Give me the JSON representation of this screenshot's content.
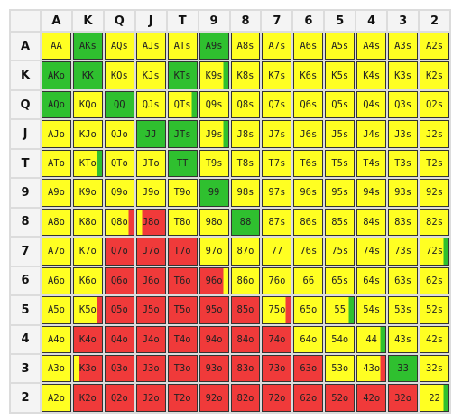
{
  "colors": {
    "raise": "#2fc02f",
    "call": "#ffff22",
    "fold": "#f03a3a"
  },
  "ranks": [
    "A",
    "K",
    "Q",
    "J",
    "T",
    "9",
    "8",
    "7",
    "6",
    "5",
    "4",
    "3",
    "2"
  ],
  "cells": [
    [
      {
        "label": "AA",
        "fill": "call",
        "accent": null
      },
      {
        "label": "AKs",
        "fill": "raise",
        "accent": null
      },
      {
        "label": "AQs",
        "fill": "call",
        "accent": null
      },
      {
        "label": "AJs",
        "fill": "call",
        "accent": null
      },
      {
        "label": "ATs",
        "fill": "call",
        "accent": null
      },
      {
        "label": "A9s",
        "fill": "raise",
        "accent": null
      },
      {
        "label": "A8s",
        "fill": "call",
        "accent": null
      },
      {
        "label": "A7s",
        "fill": "call",
        "accent": null
      },
      {
        "label": "A6s",
        "fill": "call",
        "accent": null
      },
      {
        "label": "A5s",
        "fill": "call",
        "accent": null
      },
      {
        "label": "A4s",
        "fill": "call",
        "accent": null
      },
      {
        "label": "A3s",
        "fill": "call",
        "accent": null
      },
      {
        "label": "A2s",
        "fill": "call",
        "accent": null
      }
    ],
    [
      {
        "label": "AKo",
        "fill": "raise",
        "accent": null
      },
      {
        "label": "KK",
        "fill": "raise",
        "accent": null
      },
      {
        "label": "KQs",
        "fill": "call",
        "accent": null
      },
      {
        "label": "KJs",
        "fill": "call",
        "accent": null
      },
      {
        "label": "KTs",
        "fill": "raise",
        "accent": null
      },
      {
        "label": "K9s",
        "fill": "call",
        "accent": "raise"
      },
      {
        "label": "K8s",
        "fill": "call",
        "accent": null
      },
      {
        "label": "K7s",
        "fill": "call",
        "accent": null
      },
      {
        "label": "K6s",
        "fill": "call",
        "accent": null
      },
      {
        "label": "K5s",
        "fill": "call",
        "accent": null
      },
      {
        "label": "K4s",
        "fill": "call",
        "accent": null
      },
      {
        "label": "K3s",
        "fill": "call",
        "accent": null
      },
      {
        "label": "K2s",
        "fill": "call",
        "accent": null
      }
    ],
    [
      {
        "label": "AQo",
        "fill": "raise",
        "accent": null
      },
      {
        "label": "KQo",
        "fill": "call",
        "accent": null
      },
      {
        "label": "QQ",
        "fill": "raise",
        "accent": null
      },
      {
        "label": "QJs",
        "fill": "call",
        "accent": null
      },
      {
        "label": "QTs",
        "fill": "call",
        "accent": "raise"
      },
      {
        "label": "Q9s",
        "fill": "call",
        "accent": null
      },
      {
        "label": "Q8s",
        "fill": "call",
        "accent": null
      },
      {
        "label": "Q7s",
        "fill": "call",
        "accent": null
      },
      {
        "label": "Q6s",
        "fill": "call",
        "accent": null
      },
      {
        "label": "Q5s",
        "fill": "call",
        "accent": null
      },
      {
        "label": "Q4s",
        "fill": "call",
        "accent": null
      },
      {
        "label": "Q3s",
        "fill": "call",
        "accent": null
      },
      {
        "label": "Q2s",
        "fill": "call",
        "accent": null
      }
    ],
    [
      {
        "label": "AJo",
        "fill": "call",
        "accent": null
      },
      {
        "label": "KJo",
        "fill": "call",
        "accent": null
      },
      {
        "label": "QJo",
        "fill": "call",
        "accent": null
      },
      {
        "label": "JJ",
        "fill": "raise",
        "accent": null
      },
      {
        "label": "JTs",
        "fill": "raise",
        "accent": null
      },
      {
        "label": "J9s",
        "fill": "call",
        "accent": "raise"
      },
      {
        "label": "J8s",
        "fill": "call",
        "accent": null
      },
      {
        "label": "J7s",
        "fill": "call",
        "accent": null
      },
      {
        "label": "J6s",
        "fill": "call",
        "accent": null
      },
      {
        "label": "J5s",
        "fill": "call",
        "accent": null
      },
      {
        "label": "J4s",
        "fill": "call",
        "accent": null
      },
      {
        "label": "J3s",
        "fill": "call",
        "accent": null
      },
      {
        "label": "J2s",
        "fill": "call",
        "accent": null
      }
    ],
    [
      {
        "label": "ATo",
        "fill": "call",
        "accent": null
      },
      {
        "label": "KTo",
        "fill": "call",
        "accent": "raise"
      },
      {
        "label": "QTo",
        "fill": "call",
        "accent": null
      },
      {
        "label": "JTo",
        "fill": "call",
        "accent": null
      },
      {
        "label": "TT",
        "fill": "raise",
        "accent": null
      },
      {
        "label": "T9s",
        "fill": "call",
        "accent": null
      },
      {
        "label": "T8s",
        "fill": "call",
        "accent": null
      },
      {
        "label": "T7s",
        "fill": "call",
        "accent": null
      },
      {
        "label": "T6s",
        "fill": "call",
        "accent": null
      },
      {
        "label": "T5s",
        "fill": "call",
        "accent": null
      },
      {
        "label": "T4s",
        "fill": "call",
        "accent": null
      },
      {
        "label": "T3s",
        "fill": "call",
        "accent": null
      },
      {
        "label": "T2s",
        "fill": "call",
        "accent": null
      }
    ],
    [
      {
        "label": "A9o",
        "fill": "call",
        "accent": null
      },
      {
        "label": "K9o",
        "fill": "call",
        "accent": null
      },
      {
        "label": "Q9o",
        "fill": "call",
        "accent": null
      },
      {
        "label": "J9o",
        "fill": "call",
        "accent": null
      },
      {
        "label": "T9o",
        "fill": "call",
        "accent": null
      },
      {
        "label": "99",
        "fill": "raise",
        "accent": null
      },
      {
        "label": "98s",
        "fill": "call",
        "accent": null
      },
      {
        "label": "97s",
        "fill": "call",
        "accent": null
      },
      {
        "label": "96s",
        "fill": "call",
        "accent": null
      },
      {
        "label": "95s",
        "fill": "call",
        "accent": null
      },
      {
        "label": "94s",
        "fill": "call",
        "accent": null
      },
      {
        "label": "93s",
        "fill": "call",
        "accent": null
      },
      {
        "label": "92s",
        "fill": "call",
        "accent": null
      }
    ],
    [
      {
        "label": "A8o",
        "fill": "call",
        "accent": null
      },
      {
        "label": "K8o",
        "fill": "call",
        "accent": null
      },
      {
        "label": "Q8o",
        "fill": "call",
        "accent": "fold"
      },
      {
        "label": "J8o",
        "fill": "fold",
        "accent": "call-left"
      },
      {
        "label": "T8o",
        "fill": "call",
        "accent": null
      },
      {
        "label": "98o",
        "fill": "call",
        "accent": null
      },
      {
        "label": "88",
        "fill": "raise",
        "accent": null
      },
      {
        "label": "87s",
        "fill": "call",
        "accent": null
      },
      {
        "label": "86s",
        "fill": "call",
        "accent": null
      },
      {
        "label": "85s",
        "fill": "call",
        "accent": null
      },
      {
        "label": "84s",
        "fill": "call",
        "accent": null
      },
      {
        "label": "83s",
        "fill": "call",
        "accent": null
      },
      {
        "label": "82s",
        "fill": "call",
        "accent": null
      }
    ],
    [
      {
        "label": "A7o",
        "fill": "call",
        "accent": null
      },
      {
        "label": "K7o",
        "fill": "call",
        "accent": null
      },
      {
        "label": "Q7o",
        "fill": "fold",
        "accent": null
      },
      {
        "label": "J7o",
        "fill": "fold",
        "accent": null
      },
      {
        "label": "T7o",
        "fill": "fold",
        "accent": null
      },
      {
        "label": "97o",
        "fill": "call",
        "accent": null
      },
      {
        "label": "87o",
        "fill": "call",
        "accent": null
      },
      {
        "label": "77",
        "fill": "call",
        "accent": null
      },
      {
        "label": "76s",
        "fill": "call",
        "accent": null
      },
      {
        "label": "75s",
        "fill": "call",
        "accent": null
      },
      {
        "label": "74s",
        "fill": "call",
        "accent": null
      },
      {
        "label": "73s",
        "fill": "call",
        "accent": null
      },
      {
        "label": "72s",
        "fill": "call",
        "accent": "raise"
      }
    ],
    [
      {
        "label": "A6o",
        "fill": "call",
        "accent": null
      },
      {
        "label": "K6o",
        "fill": "call",
        "accent": null
      },
      {
        "label": "Q6o",
        "fill": "fold",
        "accent": null
      },
      {
        "label": "J6o",
        "fill": "fold",
        "accent": null
      },
      {
        "label": "T6o",
        "fill": "fold",
        "accent": null
      },
      {
        "label": "96o",
        "fill": "fold",
        "accent": "call-right"
      },
      {
        "label": "86o",
        "fill": "call",
        "accent": null
      },
      {
        "label": "76o",
        "fill": "call",
        "accent": null
      },
      {
        "label": "66",
        "fill": "call",
        "accent": null
      },
      {
        "label": "65s",
        "fill": "call",
        "accent": null
      },
      {
        "label": "64s",
        "fill": "call",
        "accent": null
      },
      {
        "label": "63s",
        "fill": "call",
        "accent": null
      },
      {
        "label": "62s",
        "fill": "call",
        "accent": null
      }
    ],
    [
      {
        "label": "A5o",
        "fill": "call",
        "accent": null
      },
      {
        "label": "K5o",
        "fill": "call",
        "accent": "fold"
      },
      {
        "label": "Q5o",
        "fill": "fold",
        "accent": null
      },
      {
        "label": "J5o",
        "fill": "fold",
        "accent": null
      },
      {
        "label": "T5o",
        "fill": "fold",
        "accent": null
      },
      {
        "label": "95o",
        "fill": "fold",
        "accent": null
      },
      {
        "label": "85o",
        "fill": "fold",
        "accent": null
      },
      {
        "label": "75o",
        "fill": "call",
        "accent": "fold"
      },
      {
        "label": "65o",
        "fill": "call",
        "accent": null
      },
      {
        "label": "55",
        "fill": "call",
        "accent": "raise"
      },
      {
        "label": "54s",
        "fill": "call",
        "accent": null
      },
      {
        "label": "53s",
        "fill": "call",
        "accent": null
      },
      {
        "label": "52s",
        "fill": "call",
        "accent": null
      }
    ],
    [
      {
        "label": "A4o",
        "fill": "call",
        "accent": null
      },
      {
        "label": "K4o",
        "fill": "fold",
        "accent": null
      },
      {
        "label": "Q4o",
        "fill": "fold",
        "accent": null
      },
      {
        "label": "J4o",
        "fill": "fold",
        "accent": null
      },
      {
        "label": "T4o",
        "fill": "fold",
        "accent": null
      },
      {
        "label": "94o",
        "fill": "fold",
        "accent": null
      },
      {
        "label": "84o",
        "fill": "fold",
        "accent": null
      },
      {
        "label": "74o",
        "fill": "fold",
        "accent": null
      },
      {
        "label": "64o",
        "fill": "call",
        "accent": null
      },
      {
        "label": "54o",
        "fill": "call",
        "accent": null
      },
      {
        "label": "44",
        "fill": "call",
        "accent": "raise"
      },
      {
        "label": "43s",
        "fill": "call",
        "accent": null
      },
      {
        "label": "42s",
        "fill": "call",
        "accent": null
      }
    ],
    [
      {
        "label": "A3o",
        "fill": "call",
        "accent": null
      },
      {
        "label": "K3o",
        "fill": "fold",
        "accent": "call-left"
      },
      {
        "label": "Q3o",
        "fill": "fold",
        "accent": null
      },
      {
        "label": "J3o",
        "fill": "fold",
        "accent": null
      },
      {
        "label": "T3o",
        "fill": "fold",
        "accent": null
      },
      {
        "label": "93o",
        "fill": "fold",
        "accent": null
      },
      {
        "label": "83o",
        "fill": "fold",
        "accent": null
      },
      {
        "label": "73o",
        "fill": "fold",
        "accent": null
      },
      {
        "label": "63o",
        "fill": "fold",
        "accent": null
      },
      {
        "label": "53o",
        "fill": "call",
        "accent": null
      },
      {
        "label": "43o",
        "fill": "call",
        "accent": "fold"
      },
      {
        "label": "33",
        "fill": "raise",
        "accent": null
      },
      {
        "label": "32s",
        "fill": "call",
        "accent": null
      }
    ],
    [
      {
        "label": "A2o",
        "fill": "call",
        "accent": null
      },
      {
        "label": "K2o",
        "fill": "fold",
        "accent": null
      },
      {
        "label": "Q2o",
        "fill": "fold",
        "accent": null
      },
      {
        "label": "J2o",
        "fill": "fold",
        "accent": null
      },
      {
        "label": "T2o",
        "fill": "fold",
        "accent": null
      },
      {
        "label": "92o",
        "fill": "fold",
        "accent": null
      },
      {
        "label": "82o",
        "fill": "fold",
        "accent": null
      },
      {
        "label": "72o",
        "fill": "fold",
        "accent": null
      },
      {
        "label": "62o",
        "fill": "fold",
        "accent": null
      },
      {
        "label": "52o",
        "fill": "fold",
        "accent": null
      },
      {
        "label": "42o",
        "fill": "fold",
        "accent": null
      },
      {
        "label": "32o",
        "fill": "fold",
        "accent": null
      },
      {
        "label": "22",
        "fill": "call",
        "accent": "raise"
      }
    ]
  ]
}
